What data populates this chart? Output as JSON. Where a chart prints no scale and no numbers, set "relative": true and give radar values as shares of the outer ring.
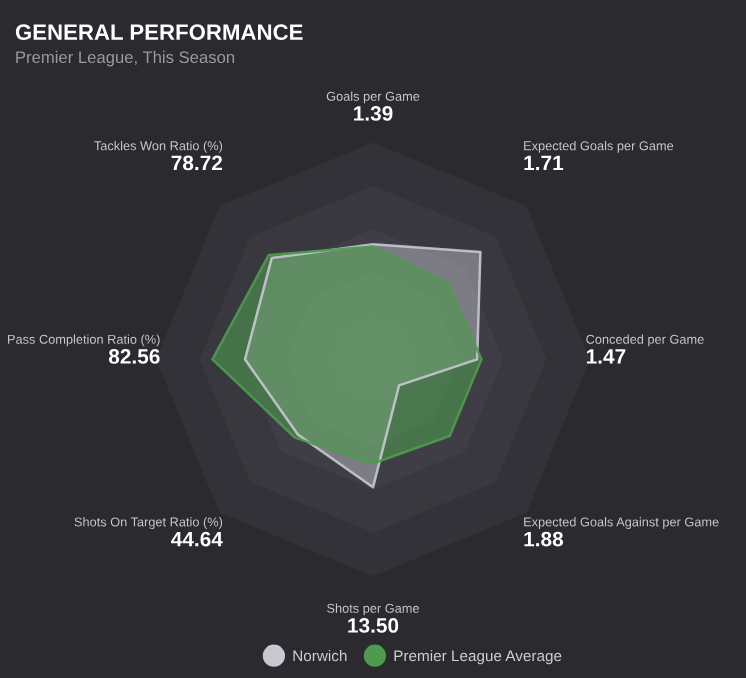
{
  "chart_data": {
    "type": "radar",
    "title": "GENERAL PERFORMANCE",
    "subtitle": "Premier League, This Season",
    "categories": [
      "Goals per Game\n1.39",
      "Expected Goals per Game\n1.71",
      "Conceded per Game\n1.47",
      "Expected Goals Against per Game\n1.88",
      "Shots per Game\n13.50",
      "Shots On Target Ratio (%)\n44.64",
      "Pass Completion Ratio (%)\n82.56",
      "Tackles Won Ratio (%)\n78.72"
    ],
    "relative": true,
    "grid": true,
    "legend": "bottom",
    "series": [
      {
        "name": "Norwich",
        "color": "#c8c8d2",
        "values": [
          0.53,
          0.7,
          0.48,
          0.17,
          0.59,
          0.49,
          0.59,
          0.66
        ]
      },
      {
        "name": "Premier League Average",
        "color": "#4f9a4f",
        "values": [
          0.52,
          0.49,
          0.5,
          0.5,
          0.48,
          0.51,
          0.74,
          0.68
        ]
      }
    ]
  }
}
